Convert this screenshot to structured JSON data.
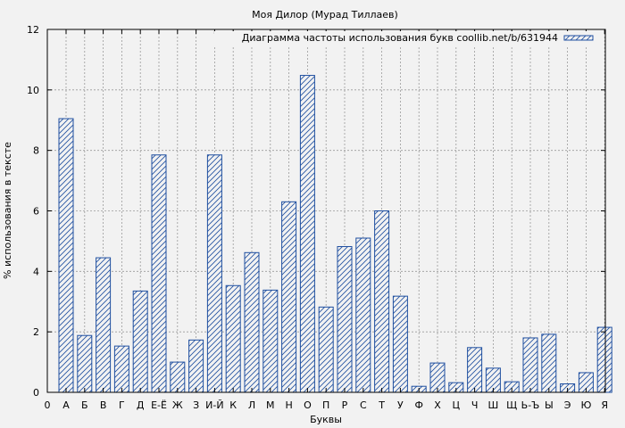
{
  "chart_data": {
    "type": "bar",
    "title": "Моя Дилор (Мурад Тиллаев)",
    "xlabel": "Буквы",
    "ylabel": "% использования в тексте",
    "legend_label": "Диаграмма частоты использования букв coollib.net/b/631944",
    "legend_position": "top-right",
    "grid": true,
    "ylim": [
      0,
      12
    ],
    "yticks": [
      "0",
      "2",
      "4",
      "6",
      "8",
      "10",
      "12"
    ],
    "origin_label": "0",
    "categories": [
      "А",
      "Б",
      "В",
      "Г",
      "Д",
      "Е-Ё",
      "Ж",
      "З",
      "И-Й",
      "К",
      "Л",
      "М",
      "Н",
      "О",
      "П",
      "Р",
      "С",
      "Т",
      "У",
      "Ф",
      "Х",
      "Ц",
      "Ч",
      "Ш",
      "Щ",
      "Ь-Ъ",
      "Ы",
      "Э",
      "Ю",
      "Я"
    ],
    "values": [
      9.05,
      1.88,
      4.45,
      1.53,
      3.35,
      7.85,
      1.0,
      1.73,
      7.85,
      3.53,
      4.62,
      3.38,
      6.3,
      10.48,
      2.82,
      4.82,
      5.1,
      6.0,
      3.18,
      0.2,
      0.97,
      0.32,
      1.48,
      0.8,
      0.35,
      1.8,
      1.92,
      0.28,
      0.65,
      2.15
    ],
    "colors": {
      "bar_stroke": "#1f4fa0",
      "hatch": "#1f4fa0",
      "grid": "#9a9a9a",
      "plot_bg": "#f2f2f2"
    }
  }
}
